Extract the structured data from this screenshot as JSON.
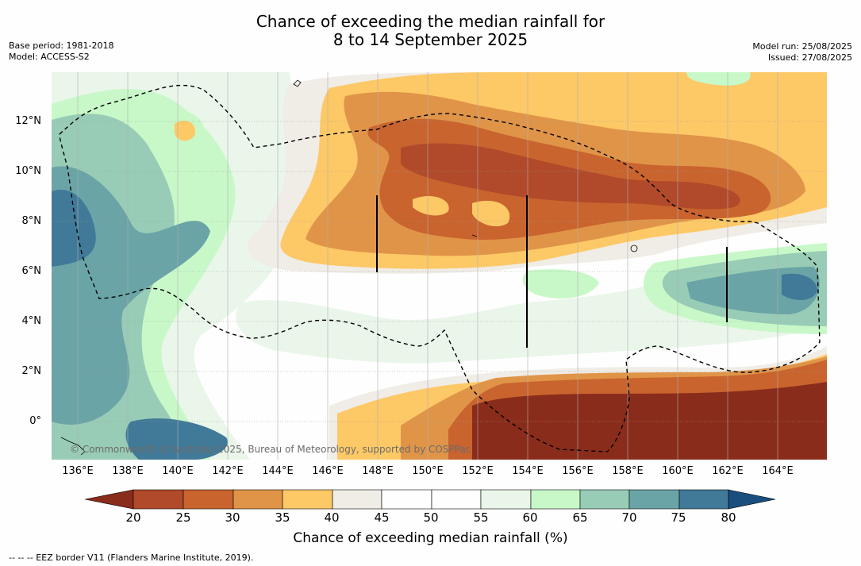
{
  "title": {
    "line1": "Chance of exceeding the median rainfall for",
    "line2": "8 to 14 September 2025"
  },
  "meta": {
    "base_period": "Base period: 1981-2018",
    "model": "Model: ACCESS-S2",
    "model_run": "Model run: 25/08/2025",
    "issued": "Issued: 27/08/2025"
  },
  "map": {
    "lat_labels": [
      "12°N",
      "10°N",
      "8°N",
      "6°N",
      "4°N",
      "2°N",
      "0°"
    ],
    "lon_labels": [
      "136°E",
      "138°E",
      "140°E",
      "142°E",
      "144°E",
      "146°E",
      "148°E",
      "150°E",
      "152°E",
      "154°E",
      "156°E",
      "158°E",
      "160°E",
      "162°E",
      "164°E"
    ],
    "copyright": "© Commonwealth of Australia 2025, Bureau of Meteorology, supported by COSPPac",
    "background_color": "#fefefe"
  },
  "colorbar": {
    "title": "Chance of exceeding median rainfall (%)",
    "ticks": [
      "20",
      "25",
      "30",
      "35",
      "40",
      "45",
      "50",
      "55",
      "60",
      "65",
      "70",
      "75",
      "80"
    ],
    "colors": {
      "below_20": "#8a2c1b",
      "20_25": "#b04a2a",
      "25_30": "#c9642e",
      "30_35": "#e09448",
      "35_40": "#fdc866",
      "40_45": "#f0ece6",
      "45_50": "#fefefe",
      "50_55": "#fefefe",
      "55_60": "#eaf6ea",
      "60_65": "#c8f8c8",
      "65_70": "#98ccb6",
      "70_75": "#6aa4a6",
      "75_80": "#417a98",
      "above_80": "#1a4e7e"
    }
  },
  "footnote": "--  --  -- EEZ border V11 (Flanders Marine Institute, 2019)."
}
